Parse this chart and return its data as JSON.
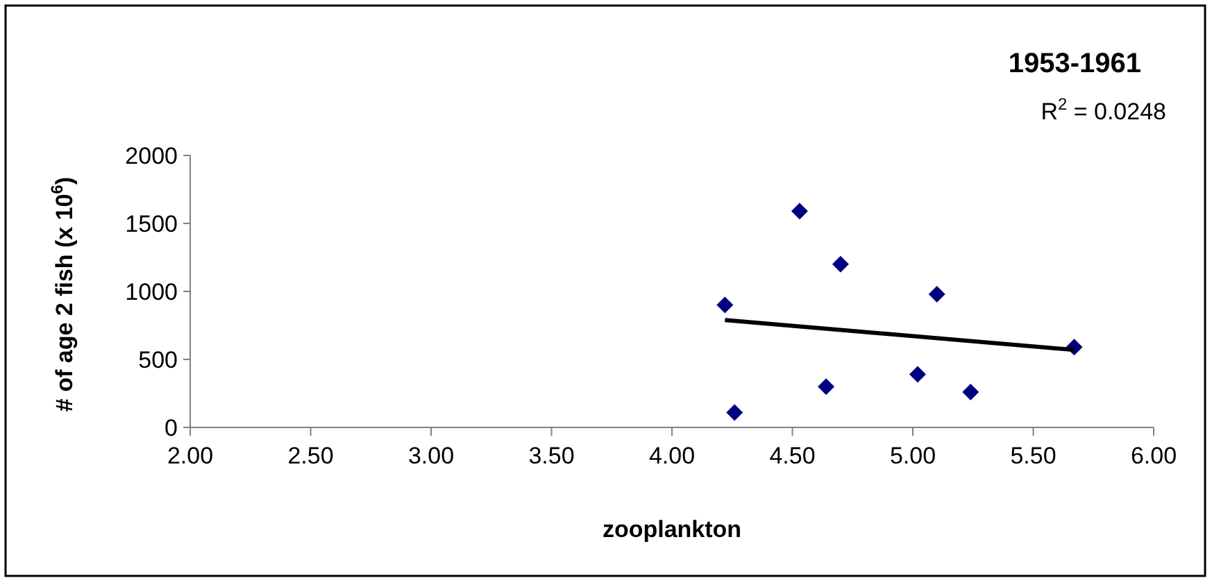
{
  "chart_data": {
    "type": "scatter",
    "title": "1953-1961",
    "xlabel": "zooplankton",
    "ylabel": "# of age 2 fish (x 10$^{6}$)",
    "annotations": [
      "R$^{2}$ = 0.0248"
    ],
    "xlim": [
      2,
      6
    ],
    "xticks": [
      {
        "value": 2,
        "label": "2.00"
      },
      {
        "value": 2.5,
        "label": "2.50"
      },
      {
        "value": 3,
        "label": "3.00"
      },
      {
        "value": 3.5,
        "label": "3.50"
      },
      {
        "value": 4,
        "label": "4.00"
      },
      {
        "value": 4.5,
        "label": "4.50"
      },
      {
        "value": 5,
        "label": "5.00"
      },
      {
        "value": 5.5,
        "label": "5.50"
      },
      {
        "value": 6,
        "label": "6.00"
      }
    ],
    "ylim": [
      0,
      2000
    ],
    "yticks": [
      0,
      500,
      1000,
      1500,
      2000
    ],
    "grid": false,
    "marker": "diamond",
    "series": [
      {
        "color": "#000080",
        "x": [
          4.22,
          4.26,
          4.53,
          4.64,
          4.7,
          5.02,
          5.1,
          5.24,
          5.67
        ],
        "values": [
          900,
          110,
          1590,
          300,
          1200,
          390,
          980,
          260,
          590
        ]
      },
      {
        "type": "line",
        "color": "#000000",
        "marker": "none",
        "line_style": "solid",
        "x": [
          4.22,
          5.67
        ],
        "values": [
          790,
          570
        ]
      }
    ]
  }
}
